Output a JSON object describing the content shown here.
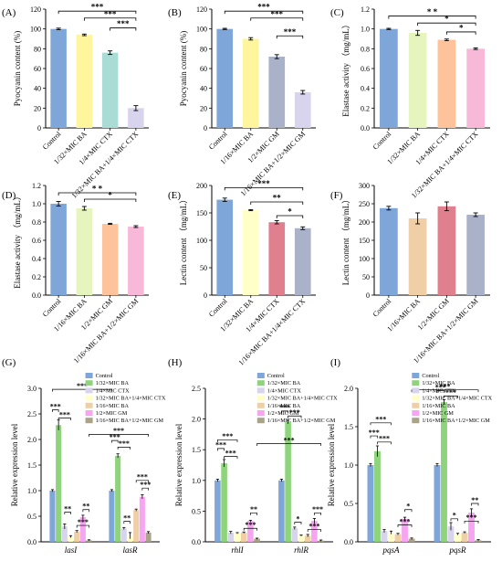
{
  "colors": {
    "blue": "#7ea6d8",
    "yellow": "#fff59d",
    "teal": "#a8dcd4",
    "lavender": "#d8d4ee",
    "grey_blue": "#a9b2c9",
    "light_green": "#e5f5bd",
    "orange": "#ffc39c",
    "red": "#e0808f",
    "pink": "#f8b8d8",
    "tan": "#f0cfa6",
    "green": "#8fd47d",
    "cream": "#ffffc7",
    "magenta": "#f6a6f0",
    "olive": "#a9a38a"
  },
  "chart_data": [
    {
      "panel": "(A)",
      "type": "bar",
      "ylabel": "Pyocyanin content (%)",
      "ylim": [
        0,
        120
      ],
      "yticks": [
        0,
        20,
        40,
        60,
        80,
        100,
        120
      ],
      "categories": [
        "Control",
        "1/32×MIC BA",
        "1/4×MIC CTX",
        "1/32×MIC BA+1/4×MIC CTX"
      ],
      "values": [
        100,
        94,
        76,
        20
      ],
      "errors": [
        0.8,
        0.8,
        1.8,
        2.5
      ],
      "colors": [
        "blue",
        "yellow",
        "teal",
        "lavender"
      ],
      "significance": [
        {
          "from": 0,
          "to": 3,
          "label": "***",
          "level": 118
        },
        {
          "from": 1,
          "to": 3,
          "label": "***",
          "level": 111
        },
        {
          "from": 2,
          "to": 3,
          "label": "***",
          "level": 101
        }
      ]
    },
    {
      "panel": "(B)",
      "type": "bar",
      "ylabel": "Pyocyanin content (%)",
      "ylim": [
        0,
        120
      ],
      "yticks": [
        0,
        20,
        40,
        60,
        80,
        100,
        120
      ],
      "categories": [
        "Control",
        "1/16×MIC BA",
        "1/2×MIC GM",
        "1/16×MIC BA+1/2×MIC GM"
      ],
      "values": [
        100,
        90,
        72,
        36
      ],
      "errors": [
        0.6,
        1.2,
        2,
        1.8
      ],
      "colors": [
        "blue",
        "yellow",
        "grey_blue",
        "lavender"
      ],
      "significance": [
        {
          "from": 0,
          "to": 3,
          "label": "***",
          "level": 118
        },
        {
          "from": 1,
          "to": 3,
          "label": "***",
          "level": 111
        },
        {
          "from": 2,
          "to": 3,
          "label": "***",
          "level": 93
        }
      ]
    },
    {
      "panel": "(C)",
      "type": "bar",
      "ylabel": "Elastase activity （mg/mL）",
      "ylim": [
        0,
        1.2
      ],
      "yticks": [
        "0.0",
        "0.2",
        "0.4",
        "0.6",
        "0.8",
        "1.0",
        "1.2"
      ],
      "categories": [
        "Control",
        "1/32×MIC BA",
        "1/4×MIC CTX",
        "1/32×MIC BA+1/4×MIC CTX"
      ],
      "values": [
        1.0,
        0.96,
        0.89,
        0.8
      ],
      "errors": [
        0.006,
        0.025,
        0.008,
        0.008
      ],
      "colors": [
        "blue",
        "light_green",
        "orange",
        "pink"
      ],
      "significance": [
        {
          "from": 0,
          "to": 3,
          "label": "* *",
          "level": 1.13
        },
        {
          "from": 1,
          "to": 3,
          "label": "*",
          "level": 1.06
        },
        {
          "from": 2,
          "to": 3,
          "label": "*",
          "level": 0.97
        }
      ]
    },
    {
      "panel": "(D)",
      "type": "bar",
      "ylabel": "Elastase activity （mg/mL）",
      "ylim": [
        0,
        1.2
      ],
      "yticks": [
        "0.0",
        "0.2",
        "0.4",
        "0.6",
        "0.8",
        "1.0",
        "1.2"
      ],
      "categories": [
        "Control",
        "1/16×MIC BA",
        "1/2×MIC GM",
        "1/16×MIC BA+1/2×MIC GM"
      ],
      "values": [
        1.0,
        0.95,
        0.78,
        0.75
      ],
      "errors": [
        0.025,
        0.02,
        0.006,
        0.01
      ],
      "colors": [
        "blue",
        "light_green",
        "orange",
        "pink"
      ],
      "significance": [
        {
          "from": 0,
          "to": 3,
          "label": "* *",
          "level": 1.12
        },
        {
          "from": 1,
          "to": 3,
          "label": "*",
          "level": 1.05
        }
      ]
    },
    {
      "panel": "(E)",
      "type": "bar",
      "ylabel": "Lectin content （mg/mL）",
      "ylim": [
        0,
        200
      ],
      "yticks": [
        0,
        50,
        100,
        150,
        200
      ],
      "categories": [
        "Control",
        "1/32×MIC BA",
        "1/4×MIC CTX",
        "1/16×MIC BA+1/4×MIC CTX"
      ],
      "values": [
        174,
        155,
        133,
        122
      ],
      "errors": [
        3,
        1,
        3,
        2.5
      ],
      "colors": [
        "blue",
        "cream",
        "red",
        "grey_blue"
      ],
      "significance": [
        {
          "from": 0,
          "to": 3,
          "label": "***",
          "level": 196
        },
        {
          "from": 1,
          "to": 3,
          "label": "**",
          "level": 170
        },
        {
          "from": 2,
          "to": 3,
          "label": "*",
          "level": 145
        }
      ]
    },
    {
      "panel": "(F)",
      "type": "bar",
      "ylabel": "Lectin content （mg/mL）",
      "ylim": [
        0,
        300
      ],
      "yticks": [
        0,
        50,
        100,
        150,
        200,
        250,
        300
      ],
      "categories": [
        "Control",
        "1/16×MIC BA",
        "1/2×MIC GM",
        "1/16×MIC BA+1/2×MIC GM"
      ],
      "values": [
        238,
        210,
        243,
        220
      ],
      "errors": [
        5,
        15,
        12,
        5
      ],
      "colors": [
        "blue",
        "tan",
        "red",
        "grey_blue"
      ],
      "significance": []
    },
    {
      "panel": "(G)",
      "type": "grouped-bar",
      "ylabel": "Relative expression level",
      "ylim": [
        0,
        3
      ],
      "yticks": [
        "0.0",
        "0.5",
        "1.0",
        "1.5",
        "2.0",
        "2.5",
        "3.0"
      ],
      "groups": [
        "lasI",
        "lasR"
      ],
      "legend_position": "top-right",
      "series": [
        {
          "name": "Control",
          "color": "blue",
          "values": [
            1.0,
            1.0
          ],
          "errors": [
            0.02,
            0.02
          ]
        },
        {
          "name": "1/32×MIC BA",
          "color": "green",
          "values": [
            2.28,
            1.68
          ],
          "errors": [
            0.1,
            0.04
          ]
        },
        {
          "name": "1/4×MIC CTX",
          "color": "lavender",
          "values": [
            0.3,
            0.26
          ],
          "errors": [
            0.05,
            0.02
          ]
        },
        {
          "name": "1/32×MIC BA+1/4×MIC CTX",
          "color": "cream",
          "values": [
            0.1,
            0.12
          ],
          "errors": [
            0.02,
            0.06
          ]
        },
        {
          "name": "1/16×MIC BA",
          "color": "tan",
          "values": [
            0.2,
            0.62
          ],
          "errors": [
            0.02,
            0.02
          ]
        },
        {
          "name": "1/2×MIC GM",
          "color": "magenta",
          "values": [
            0.48,
            0.88
          ],
          "errors": [
            0.04,
            0.04
          ]
        },
        {
          "name": "1/16×MIC BA+1/2×MIC GM",
          "color": "olive",
          "values": [
            0.03,
            0.18
          ],
          "errors": [
            0.01,
            0.02
          ]
        }
      ],
      "significance": [
        {
          "group": 0,
          "from": 0,
          "to": 1,
          "label": "***",
          "level": 2.58
        },
        {
          "group": 0,
          "from": 1,
          "to": 3,
          "label": "***",
          "level": 2.42
        },
        {
          "group": 0,
          "from": 2,
          "to": 3,
          "label": "**",
          "level": 0.58
        },
        {
          "group": 0,
          "from": 4,
          "to": 6,
          "label": "***",
          "level": 0.32
        },
        {
          "group": 0,
          "from": 5,
          "to": 6,
          "label": "**",
          "level": 0.63
        },
        {
          "group": 1,
          "from": 0,
          "to": 1,
          "label": "***",
          "level": 1.98
        },
        {
          "group": 1,
          "from": 1,
          "to": 3,
          "label": "***",
          "level": 1.85
        },
        {
          "group": 1,
          "from": 2,
          "to": 3,
          "label": "**",
          "level": 0.4
        },
        {
          "group": 1,
          "from": 4,
          "to": 6,
          "label": "***",
          "level": 1.2
        },
        {
          "group": 1,
          "from": 5,
          "to": 6,
          "label": "***",
          "level": 1.05
        },
        {
          "from_group": 0,
          "from": 0,
          "to_group": 1,
          "to": 0,
          "label": "***",
          "level": 2.98
        },
        {
          "from_group": 0,
          "from": 6,
          "to_group": 1,
          "to": 6,
          "label": "***",
          "level": 2.1
        }
      ]
    },
    {
      "panel": "(H)",
      "type": "grouped-bar",
      "ylabel": "Relative expression level",
      "ylim": [
        0,
        2.5
      ],
      "yticks": [
        "0.0",
        "0.5",
        "1.0",
        "1.5",
        "2.0",
        "2.5"
      ],
      "groups": [
        "rhlI",
        "rhlR"
      ],
      "legend_position": "top-right",
      "series": [
        {
          "name": "Control",
          "color": "blue",
          "values": [
            1.0,
            1.0
          ],
          "errors": [
            0.02,
            0.02
          ]
        },
        {
          "name": "1/32×MIC BA",
          "color": "green",
          "values": [
            1.28,
            1.95
          ],
          "errors": [
            0.06,
            0.03
          ]
        },
        {
          "name": "1/4×MIC CTX",
          "color": "lavender",
          "values": [
            0.15,
            0.22
          ],
          "errors": [
            0.02,
            0.02
          ]
        },
        {
          "name": "1/32×MIC BA+1/4×MIC CTX",
          "color": "cream",
          "values": [
            0.14,
            0.1
          ],
          "errors": [
            0.01,
            0.01
          ]
        },
        {
          "name": "1/16×MIC BA",
          "color": "tan",
          "values": [
            0.15,
            0.1
          ],
          "errors": [
            0.01,
            0.02
          ]
        },
        {
          "name": "1/2×MIC GM",
          "color": "magenta",
          "values": [
            0.34,
            0.34
          ],
          "errors": [
            0.01,
            0.04
          ]
        },
        {
          "name": "1/16×MIC BA+1/2×MIC GM",
          "color": "olive",
          "values": [
            0.05,
            0.02
          ],
          "errors": [
            0.01,
            0.01
          ]
        }
      ],
      "significance": [
        {
          "group": 0,
          "from": 0,
          "to": 1,
          "label": "***",
          "level": 1.52
        },
        {
          "group": 0,
          "from": 1,
          "to": 3,
          "label": "***",
          "level": 1.39
        },
        {
          "group": 0,
          "from": 4,
          "to": 6,
          "label": "***",
          "level": 0.22
        },
        {
          "group": 0,
          "from": 5,
          "to": 6,
          "label": "**",
          "level": 0.47
        },
        {
          "group": 1,
          "from": 0,
          "to": 1,
          "label": "***",
          "level": 2.13
        },
        {
          "group": 1,
          "from": 1,
          "to": 3,
          "label": "***",
          "level": 2.05
        },
        {
          "group": 1,
          "from": 2,
          "to": 3,
          "label": "*",
          "level": 0.32
        },
        {
          "group": 1,
          "from": 4,
          "to": 6,
          "label": "***",
          "level": 0.2
        },
        {
          "group": 1,
          "from": 5,
          "to": 6,
          "label": "***",
          "level": 0.47
        },
        {
          "from_group": 0,
          "from": 0,
          "to_group": 0,
          "to": 3,
          "label": "***",
          "level": 1.66
        },
        {
          "from_group": 0,
          "from": 6,
          "to_group": 1,
          "to": 6,
          "label": "***",
          "level": 1.6
        }
      ]
    },
    {
      "panel": "(I)",
      "type": "grouped-bar",
      "ylabel": "Relative expression level",
      "ylim": [
        0,
        2.0
      ],
      "yticks": [
        "0.0",
        "0.5",
        "1.0",
        "1.5",
        "2.0"
      ],
      "groups": [
        "pqsA",
        "pqsR"
      ],
      "legend_position": "top-right",
      "series": [
        {
          "name": "Control",
          "color": "blue",
          "values": [
            1.0,
            1.0
          ],
          "errors": [
            0.02,
            0.02
          ]
        },
        {
          "name": "1/32×MIC BA",
          "color": "green",
          "values": [
            1.18,
            1.82
          ],
          "errors": [
            0.07,
            0.03
          ]
        },
        {
          "name": "1/4×MIC CTX",
          "color": "lavender",
          "values": [
            0.14,
            0.2
          ],
          "errors": [
            0.02,
            0.05
          ]
        },
        {
          "name": "1/32×MIC BA+1/4×MIC CTX",
          "color": "cream",
          "values": [
            0.12,
            0.1
          ],
          "errors": [
            0.02,
            0.01
          ]
        },
        {
          "name": "1/16×MIC BA",
          "color": "tan",
          "values": [
            0.1,
            0.12
          ],
          "errors": [
            0.01,
            0.01
          ]
        },
        {
          "name": "1/2×MIC GM",
          "color": "magenta",
          "values": [
            0.3,
            0.38
          ],
          "errors": [
            0.02,
            0.05
          ]
        },
        {
          "name": "1/16×MIC BA+1/2×MIC GM",
          "color": "olive",
          "values": [
            0.04,
            0.02
          ],
          "errors": [
            0.01,
            0.01
          ]
        }
      ],
      "significance": [
        {
          "group": 0,
          "from": 0,
          "to": 1,
          "label": "***",
          "level": 1.38
        },
        {
          "group": 0,
          "from": 1,
          "to": 3,
          "label": "***",
          "level": 1.3
        },
        {
          "group": 0,
          "from": 4,
          "to": 6,
          "label": "***",
          "level": 0.22
        },
        {
          "group": 0,
          "from": 5,
          "to": 6,
          "label": "*",
          "level": 0.42
        },
        {
          "group": 1,
          "from": 0,
          "to": 1,
          "label": "***",
          "level": 1.97
        },
        {
          "group": 1,
          "from": 1,
          "to": 3,
          "label": "***",
          "level": 1.9
        },
        {
          "group": 1,
          "from": 2,
          "to": 3,
          "label": "*",
          "level": 0.3
        },
        {
          "group": 1,
          "from": 4,
          "to": 6,
          "label": "***",
          "level": 0.27
        },
        {
          "group": 1,
          "from": 5,
          "to": 6,
          "label": "**",
          "level": 0.5
        },
        {
          "from_group": 0,
          "from": 0,
          "to_group": 0,
          "to": 3,
          "label": "***",
          "level": 1.55
        },
        {
          "from_group": 0,
          "from": 6,
          "to_group": 1,
          "to": 6,
          "label": "***",
          "level": 1.98
        }
      ]
    }
  ]
}
